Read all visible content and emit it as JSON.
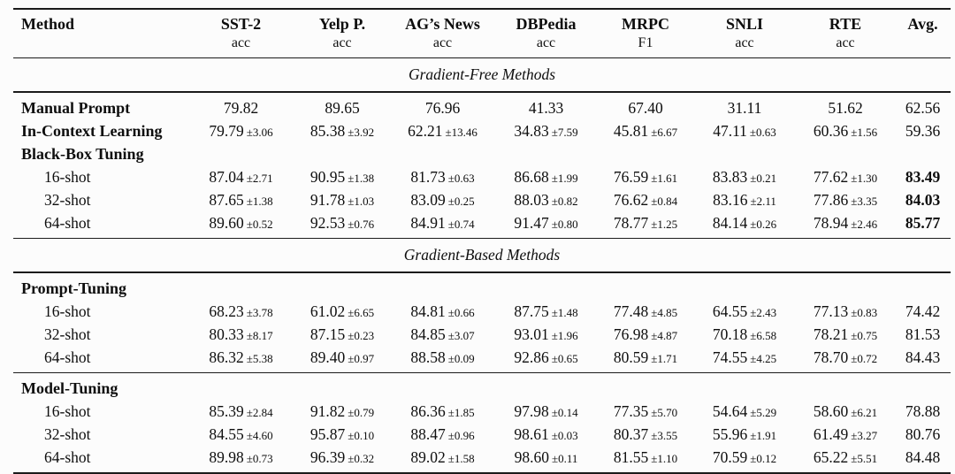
{
  "table": {
    "columns": [
      {
        "name": "Method",
        "metric": ""
      },
      {
        "name": "SST-2",
        "metric": "acc"
      },
      {
        "name": "Yelp P.",
        "metric": "acc"
      },
      {
        "name": "AG’s News",
        "metric": "acc"
      },
      {
        "name": "DBPedia",
        "metric": "acc"
      },
      {
        "name": "MRPC",
        "metric": "F1"
      },
      {
        "name": "SNLI",
        "metric": "acc"
      },
      {
        "name": "RTE",
        "metric": "acc"
      },
      {
        "name": "Avg.",
        "metric": ""
      }
    ],
    "sections": [
      {
        "title": "Gradient-Free Methods",
        "groups": [
          {
            "rows": [
              {
                "label": "Manual Prompt",
                "bold": true,
                "indent": false,
                "cells": [
                  {
                    "v": "79.82"
                  },
                  {
                    "v": "89.65"
                  },
                  {
                    "v": "76.96"
                  },
                  {
                    "v": "41.33"
                  },
                  {
                    "v": "67.40"
                  },
                  {
                    "v": "31.11"
                  },
                  {
                    "v": "51.62"
                  }
                ],
                "avg": {
                  "v": "62.56",
                  "bold": false
                }
              },
              {
                "label": "In-Context Learning",
                "bold": true,
                "indent": false,
                "cells": [
                  {
                    "v": "79.79",
                    "sd": "±3.06"
                  },
                  {
                    "v": "85.38",
                    "sd": "±3.92"
                  },
                  {
                    "v": "62.21",
                    "sd": "±13.46"
                  },
                  {
                    "v": "34.83",
                    "sd": "±7.59"
                  },
                  {
                    "v": "45.81",
                    "sd": "±6.67"
                  },
                  {
                    "v": "47.11",
                    "sd": "±0.63"
                  },
                  {
                    "v": "60.36",
                    "sd": "±1.56"
                  }
                ],
                "avg": {
                  "v": "59.36",
                  "bold": false
                }
              },
              {
                "label": "Black-Box Tuning",
                "bold": true,
                "indent": false,
                "cells": [],
                "avg": null
              },
              {
                "label": "16-shot",
                "bold": false,
                "indent": true,
                "cells": [
                  {
                    "v": "87.04",
                    "sd": "±2.71"
                  },
                  {
                    "v": "90.95",
                    "sd": "±1.38"
                  },
                  {
                    "v": "81.73",
                    "sd": "±0.63"
                  },
                  {
                    "v": "86.68",
                    "sd": "±1.99"
                  },
                  {
                    "v": "76.59",
                    "sd": "±1.61"
                  },
                  {
                    "v": "83.83",
                    "sd": "±0.21"
                  },
                  {
                    "v": "77.62",
                    "sd": "±1.30"
                  }
                ],
                "avg": {
                  "v": "83.49",
                  "bold": true
                }
              },
              {
                "label": "32-shot",
                "bold": false,
                "indent": true,
                "cells": [
                  {
                    "v": "87.65",
                    "sd": "±1.38"
                  },
                  {
                    "v": "91.78",
                    "sd": "±1.03"
                  },
                  {
                    "v": "83.09",
                    "sd": "±0.25"
                  },
                  {
                    "v": "88.03",
                    "sd": "±0.82"
                  },
                  {
                    "v": "76.62",
                    "sd": "±0.84"
                  },
                  {
                    "v": "83.16",
                    "sd": "±2.11"
                  },
                  {
                    "v": "77.86",
                    "sd": "±3.35"
                  }
                ],
                "avg": {
                  "v": "84.03",
                  "bold": true
                }
              },
              {
                "label": "64-shot",
                "bold": false,
                "indent": true,
                "cells": [
                  {
                    "v": "89.60",
                    "sd": "±0.52"
                  },
                  {
                    "v": "92.53",
                    "sd": "±0.76"
                  },
                  {
                    "v": "84.91",
                    "sd": "±0.74"
                  },
                  {
                    "v": "91.47",
                    "sd": "±0.80"
                  },
                  {
                    "v": "78.77",
                    "sd": "±1.25"
                  },
                  {
                    "v": "84.14",
                    "sd": "±0.26"
                  },
                  {
                    "v": "78.94",
                    "sd": "±2.46"
                  }
                ],
                "avg": {
                  "v": "85.77",
                  "bold": true
                }
              }
            ]
          }
        ]
      },
      {
        "title": "Gradient-Based Methods",
        "groups": [
          {
            "rows": [
              {
                "label": "Prompt-Tuning",
                "bold": true,
                "indent": false,
                "cells": [],
                "avg": null
              },
              {
                "label": "16-shot",
                "bold": false,
                "indent": true,
                "cells": [
                  {
                    "v": "68.23",
                    "sd": "±3.78"
                  },
                  {
                    "v": "61.02",
                    "sd": "±6.65"
                  },
                  {
                    "v": "84.81",
                    "sd": "±0.66"
                  },
                  {
                    "v": "87.75",
                    "sd": "±1.48"
                  },
                  {
                    "v": "77.48",
                    "sd": "±4.85"
                  },
                  {
                    "v": "64.55",
                    "sd": "±2.43"
                  },
                  {
                    "v": "77.13",
                    "sd": "±0.83"
                  }
                ],
                "avg": {
                  "v": "74.42",
                  "bold": false
                }
              },
              {
                "label": "32-shot",
                "bold": false,
                "indent": true,
                "cells": [
                  {
                    "v": "80.33",
                    "sd": "±8.17"
                  },
                  {
                    "v": "87.15",
                    "sd": "±0.23"
                  },
                  {
                    "v": "84.85",
                    "sd": "±3.07"
                  },
                  {
                    "v": "93.01",
                    "sd": "±1.96"
                  },
                  {
                    "v": "76.98",
                    "sd": "±4.87"
                  },
                  {
                    "v": "70.18",
                    "sd": "±6.58"
                  },
                  {
                    "v": "78.21",
                    "sd": "±0.75"
                  }
                ],
                "avg": {
                  "v": "81.53",
                  "bold": false
                }
              },
              {
                "label": "64-shot",
                "bold": false,
                "indent": true,
                "cells": [
                  {
                    "v": "86.32",
                    "sd": "±5.38"
                  },
                  {
                    "v": "89.40",
                    "sd": "±0.97"
                  },
                  {
                    "v": "88.58",
                    "sd": "±0.09"
                  },
                  {
                    "v": "92.86",
                    "sd": "±0.65"
                  },
                  {
                    "v": "80.59",
                    "sd": "±1.71"
                  },
                  {
                    "v": "74.55",
                    "sd": "±4.25"
                  },
                  {
                    "v": "78.70",
                    "sd": "±0.72"
                  }
                ],
                "avg": {
                  "v": "84.43",
                  "bold": false
                }
              }
            ]
          },
          {
            "rows": [
              {
                "label": "Model-Tuning",
                "bold": true,
                "indent": false,
                "cells": [],
                "avg": null
              },
              {
                "label": "16-shot",
                "bold": false,
                "indent": true,
                "cells": [
                  {
                    "v": "85.39",
                    "sd": "±2.84"
                  },
                  {
                    "v": "91.82",
                    "sd": "±0.79"
                  },
                  {
                    "v": "86.36",
                    "sd": "±1.85"
                  },
                  {
                    "v": "97.98",
                    "sd": "±0.14"
                  },
                  {
                    "v": "77.35",
                    "sd": "±5.70"
                  },
                  {
                    "v": "54.64",
                    "sd": "±5.29"
                  },
                  {
                    "v": "58.60",
                    "sd": "±6.21"
                  }
                ],
                "avg": {
                  "v": "78.88",
                  "bold": false
                }
              },
              {
                "label": "32-shot",
                "bold": false,
                "indent": true,
                "cells": [
                  {
                    "v": "84.55",
                    "sd": "±4.60"
                  },
                  {
                    "v": "95.87",
                    "sd": "±0.10"
                  },
                  {
                    "v": "88.47",
                    "sd": "±0.96"
                  },
                  {
                    "v": "98.61",
                    "sd": "±0.03"
                  },
                  {
                    "v": "80.37",
                    "sd": "±3.55"
                  },
                  {
                    "v": "55.96",
                    "sd": "±1.91"
                  },
                  {
                    "v": "61.49",
                    "sd": "±3.27"
                  }
                ],
                "avg": {
                  "v": "80.76",
                  "bold": false
                }
              },
              {
                "label": "64-shot",
                "bold": false,
                "indent": true,
                "cells": [
                  {
                    "v": "89.98",
                    "sd": "±0.73"
                  },
                  {
                    "v": "96.39",
                    "sd": "±0.32"
                  },
                  {
                    "v": "89.02",
                    "sd": "±1.58"
                  },
                  {
                    "v": "98.60",
                    "sd": "±0.11"
                  },
                  {
                    "v": "81.55",
                    "sd": "±1.10"
                  },
                  {
                    "v": "70.59",
                    "sd": "±0.12"
                  },
                  {
                    "v": "65.22",
                    "sd": "±5.51"
                  }
                ],
                "avg": {
                  "v": "84.48",
                  "bold": false
                }
              }
            ]
          }
        ]
      }
    ]
  }
}
